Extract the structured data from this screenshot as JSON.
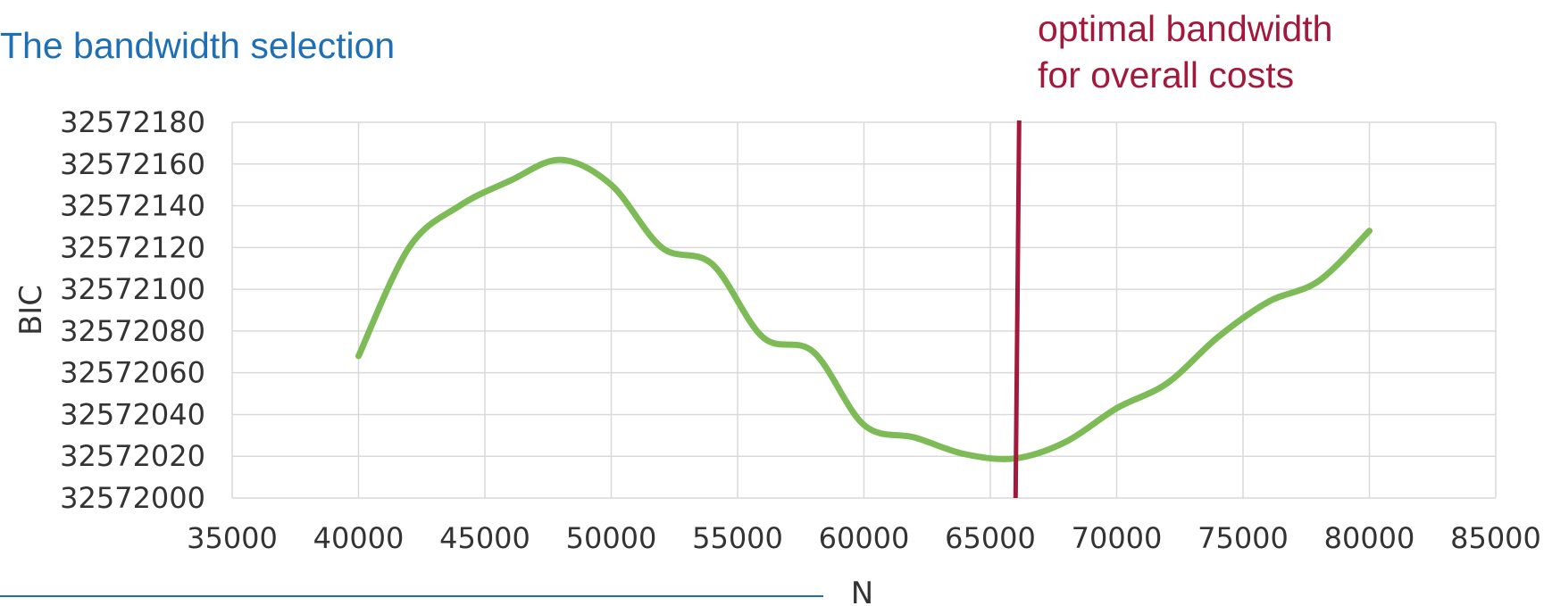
{
  "slide": {
    "title": "The bandwidth selection",
    "annotation_line1": "optimal bandwidth",
    "annotation_line2": "for overall costs"
  },
  "colors": {
    "series": "#7dbb56",
    "marker_line": "#a3193c",
    "title": "#1f6fb5",
    "grid": "#d9d9d9"
  },
  "chart_data": {
    "type": "line",
    "xlabel": "N",
    "ylabel": "BIC",
    "xlim": [
      35000,
      85000
    ],
    "ylim": [
      32572000,
      32572180
    ],
    "x_ticks": [
      35000,
      40000,
      45000,
      50000,
      55000,
      60000,
      65000,
      70000,
      75000,
      80000,
      85000
    ],
    "y_ticks": [
      32572000,
      32572020,
      32572040,
      32572060,
      32572080,
      32572100,
      32572120,
      32572140,
      32572160,
      32572180
    ],
    "grid": true,
    "smooth": true,
    "series": [
      {
        "x": [
          40000,
          42000,
          44000,
          46000,
          48000,
          50000,
          52000,
          54000,
          56000,
          58000,
          60000,
          62000,
          64000,
          66000,
          68000,
          70000,
          72000,
          74000,
          76000,
          78000,
          80000
        ],
        "y": [
          32572068,
          32572120,
          32572140,
          32572152,
          32572162,
          32572150,
          32572120,
          32572112,
          32572077,
          32572070,
          32572035,
          32572029,
          32572021,
          32572019,
          32572027,
          32572043,
          32572055,
          32572077,
          32572094,
          32572104,
          32572128
        ]
      }
    ],
    "vertical_marker": {
      "x": 66000
    }
  }
}
